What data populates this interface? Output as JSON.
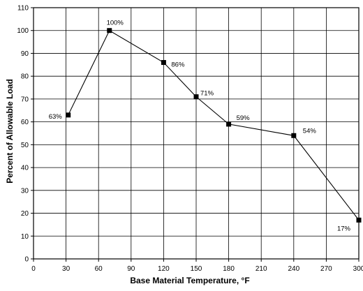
{
  "chart_data": {
    "type": "line",
    "title": "",
    "xlabel": "Base Material Temperature, °F",
    "ylabel": "Percent of Allowable Load",
    "xlim": [
      0,
      300
    ],
    "ylim": [
      0,
      110
    ],
    "x_ticks": [
      0,
      30,
      60,
      90,
      120,
      150,
      180,
      210,
      240,
      270,
      300
    ],
    "y_ticks": [
      0,
      10,
      20,
      30,
      40,
      50,
      60,
      70,
      80,
      90,
      100,
      110
    ],
    "grid": true,
    "legend": "none",
    "series": [
      {
        "x": [
          32,
          70,
          120,
          150,
          180,
          240,
          300
        ],
        "y": [
          63,
          100,
          86,
          71,
          59,
          54,
          17
        ],
        "data_labels": [
          "63%",
          "100%",
          "86%",
          "71%",
          "59%",
          "54%",
          "17%"
        ]
      }
    ],
    "colors": {
      "line": "#000000",
      "grid": "#000000",
      "marker": "#000000"
    }
  }
}
